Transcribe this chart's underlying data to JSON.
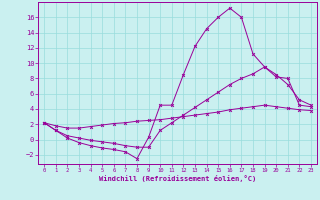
{
  "xlabel": "Windchill (Refroidissement éolien,°C)",
  "background_color": "#caf0f0",
  "line_color": "#990099",
  "grid_color": "#99dddd",
  "xlim": [
    -0.5,
    23.5
  ],
  "ylim": [
    -3.2,
    18.0
  ],
  "xticks": [
    0,
    1,
    2,
    3,
    4,
    5,
    6,
    7,
    8,
    9,
    10,
    11,
    12,
    13,
    14,
    15,
    16,
    17,
    18,
    19,
    20,
    21,
    22,
    23
  ],
  "yticks": [
    -2,
    0,
    2,
    4,
    6,
    8,
    10,
    12,
    14,
    16
  ],
  "line1_x": [
    0,
    1,
    2,
    3,
    4,
    5,
    6,
    7,
    8,
    9,
    10,
    11,
    12,
    13,
    14,
    15,
    16,
    17,
    18,
    19,
    20,
    21,
    22,
    23
  ],
  "line1_y": [
    2.2,
    1.2,
    0.2,
    -0.4,
    -0.8,
    -1.1,
    -1.3,
    -1.6,
    -2.5,
    0.3,
    4.5,
    4.5,
    8.5,
    12.2,
    14.5,
    16.0,
    17.2,
    16.0,
    11.2,
    9.5,
    8.2,
    8.0,
    4.5,
    4.3
  ],
  "line2_x": [
    0,
    1,
    2,
    3,
    4,
    5,
    6,
    7,
    8,
    9,
    10,
    11,
    12,
    13,
    14,
    15,
    16,
    17,
    18,
    19,
    20,
    21,
    22,
    23
  ],
  "line2_y": [
    2.2,
    1.2,
    0.5,
    0.2,
    -0.1,
    -0.3,
    -0.5,
    -0.8,
    -1.0,
    -1.0,
    1.2,
    2.2,
    3.2,
    4.2,
    5.2,
    6.2,
    7.2,
    8.0,
    8.6,
    9.5,
    8.5,
    7.2,
    5.2,
    4.5
  ],
  "line3_x": [
    0,
    1,
    2,
    3,
    4,
    5,
    6,
    7,
    8,
    9,
    10,
    11,
    12,
    13,
    14,
    15,
    16,
    17,
    18,
    19,
    20,
    21,
    22,
    23
  ],
  "line3_y": [
    2.2,
    1.8,
    1.5,
    1.5,
    1.7,
    1.9,
    2.1,
    2.2,
    2.4,
    2.5,
    2.6,
    2.8,
    3.0,
    3.2,
    3.4,
    3.6,
    3.9,
    4.1,
    4.3,
    4.5,
    4.3,
    4.1,
    3.9,
    3.8
  ]
}
